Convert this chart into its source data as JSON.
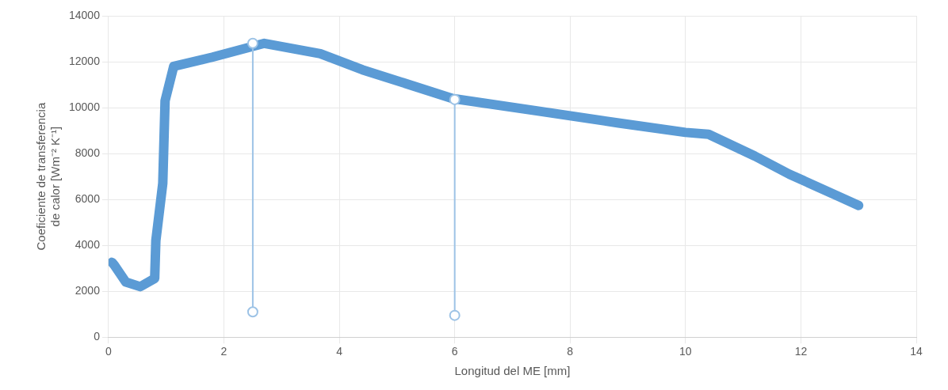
{
  "chart_data": {
    "type": "line",
    "xlabel": "Longitud del ME [mm]",
    "ylabel": "Coeficiente de transferencia de calor [Wm⁻² K⁻¹]",
    "xlim": [
      0,
      14
    ],
    "xticks": [
      0,
      2,
      4,
      6,
      8,
      10,
      12,
      14
    ],
    "ylim": [
      0,
      14000
    ],
    "yticks": [
      0,
      2000,
      4000,
      6000,
      8000,
      10000,
      12000,
      14000
    ],
    "grid": true,
    "legend": false,
    "marker": "none",
    "line_style": "solid",
    "series": [
      {
        "color": "#5b9bd5",
        "x": [
          0.06,
          0.1,
          0.3,
          0.55,
          0.8,
          0.82,
          0.94,
          0.98,
          1.13,
          1.8,
          2.7,
          3.67,
          4.4,
          5.96,
          7.4,
          8.84,
          10.0,
          10.4,
          11.2,
          11.8,
          13.0
        ],
        "values": [
          3260,
          3140,
          2400,
          2200,
          2560,
          4200,
          6700,
          10300,
          11800,
          12200,
          12800,
          12350,
          11650,
          10400,
          9870,
          9330,
          8920,
          8840,
          7890,
          7100,
          5740
        ]
      },
      {
        "color": "#9dc3e6",
        "marker": "circle",
        "x": [
          2.5,
          2.5
        ],
        "values": [
          1100,
          12800
        ]
      },
      {
        "color": "#9dc3e6",
        "marker": "circle",
        "x": [
          6,
          6
        ],
        "values": [
          950,
          10350
        ]
      }
    ]
  }
}
